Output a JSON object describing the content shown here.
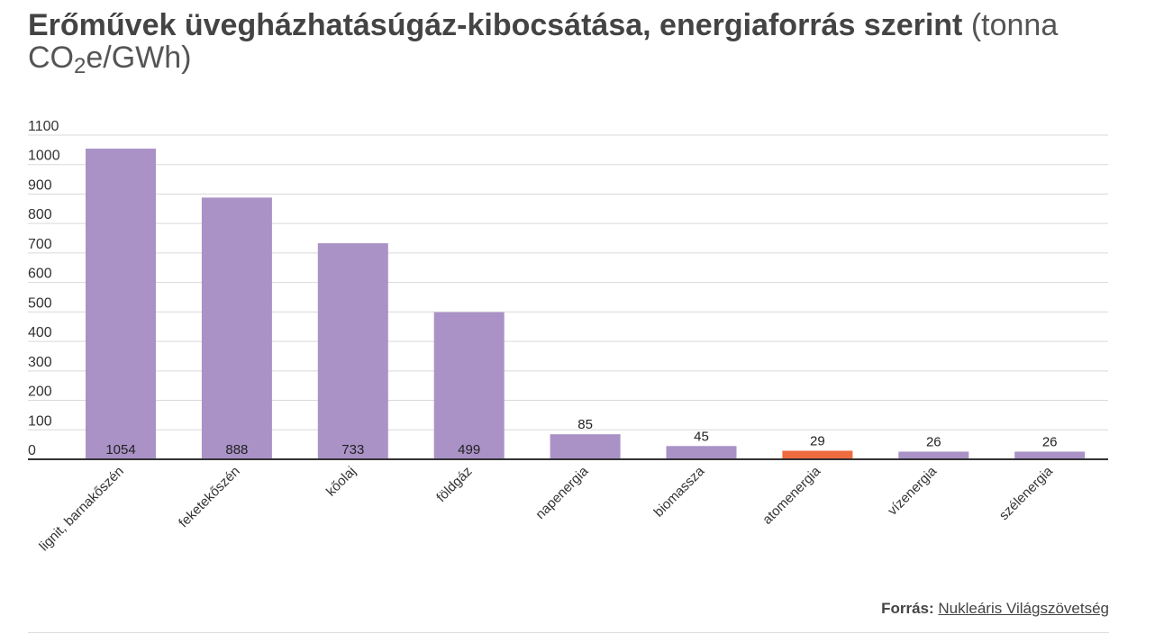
{
  "title": {
    "bold": "Erőművek üvegházhatásúgáz-kibocsátása, energiaforrás szerint",
    "light_before_sub": "(tonna CO",
    "subscript": "2",
    "light_after_sub": "e/GWh)"
  },
  "source": {
    "label": "Forrás:",
    "link_text": "Nukleáris Világszövetség"
  },
  "colors": {
    "bar": "#aa92c7",
    "highlight": "#ee6a3f",
    "grid": "#d9d9d9",
    "axis": "#333333"
  },
  "chart_data": {
    "type": "bar",
    "categories": [
      "lignit, barnakőszén",
      "feketekőszén",
      "kőolaj",
      "földgáz",
      "napenergia",
      "biomassza",
      "atomenergia",
      "vízenergia",
      "szélenergia"
    ],
    "values": [
      1054,
      888,
      733,
      499,
      85,
      45,
      29,
      26,
      26
    ],
    "highlight_category": "atomenergia",
    "yticks": [
      0,
      100,
      200,
      300,
      400,
      500,
      600,
      700,
      800,
      900,
      1000,
      1100
    ],
    "ylim": [
      0,
      1100
    ],
    "xlabel": "",
    "ylabel": "",
    "grid": true,
    "data_labels": true
  }
}
